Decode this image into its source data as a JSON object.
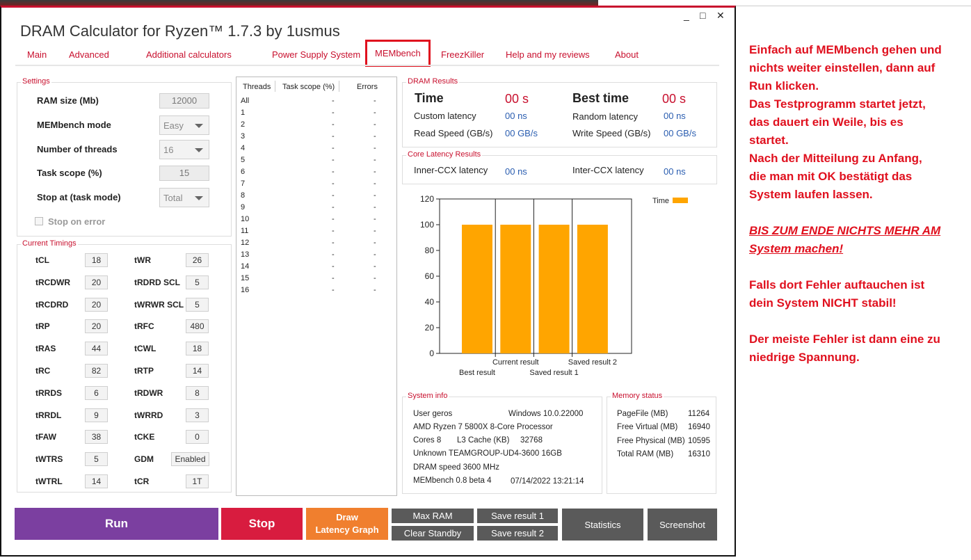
{
  "app_title": "DRAM Calculator for Ryzen™ 1.7.3 by 1usmus",
  "window_controls": [
    "_",
    "□",
    "✕"
  ],
  "tabs": [
    "Main",
    "Advanced",
    "Additional calculators",
    "Power Supply System",
    "MEMbench",
    "FreezKiller",
    "Help and my reviews",
    "About"
  ],
  "settings": {
    "title": "Settings",
    "ram_size_label": "RAM size (Mb)",
    "ram_size_value": "12000",
    "mode_label": "MEMbench mode",
    "mode_value": "Easy",
    "threads_label": "Number of threads",
    "threads_value": "16",
    "scope_label": "Task scope (%)",
    "scope_value": "15",
    "stop_label": "Stop at (task mode)",
    "stop_value": "Total",
    "stop_on_error": "Stop on error"
  },
  "timings": {
    "title": "Current Timings",
    "rows": [
      {
        "l1": "tCL",
        "v1": "18",
        "l2": "tWR",
        "v2": "26"
      },
      {
        "l1": "tRCDWR",
        "v1": "20",
        "l2": "tRDRD SCL",
        "v2": "5"
      },
      {
        "l1": "tRCDRD",
        "v1": "20",
        "l2": "tWRWR SCL",
        "v2": "5"
      },
      {
        "l1": "tRP",
        "v1": "20",
        "l2": "tRFC",
        "v2": "480"
      },
      {
        "l1": "tRAS",
        "v1": "44",
        "l2": "tCWL",
        "v2": "18"
      },
      {
        "l1": "tRC",
        "v1": "82",
        "l2": "tRTP",
        "v2": "14"
      },
      {
        "l1": "tRRDS",
        "v1": "6",
        "l2": "tRDWR",
        "v2": "8"
      },
      {
        "l1": "tRRDL",
        "v1": "9",
        "l2": "tWRRD",
        "v2": "3"
      },
      {
        "l1": "tFAW",
        "v1": "38",
        "l2": "tCKE",
        "v2": "0"
      },
      {
        "l1": "tWTRS",
        "v1": "5",
        "l2": "GDM",
        "v2": "Enabled"
      },
      {
        "l1": "tWTRL",
        "v1": "14",
        "l2": "tCR",
        "v2": "1T"
      }
    ]
  },
  "threads_table": {
    "headers": [
      "Threads",
      "Task scope (%)",
      "Errors"
    ],
    "rows": [
      "All",
      "1",
      "2",
      "3",
      "4",
      "5",
      "6",
      "7",
      "8",
      "9",
      "10",
      "11",
      "12",
      "13",
      "14",
      "15",
      "16"
    ],
    "dash": "-"
  },
  "dram_results": {
    "title": "DRAM Results",
    "time_label": "Time",
    "time_value": "00 s",
    "best_label": "Best time",
    "best_value": "00 s",
    "custom_label": "Custom latency",
    "custom_value": "00 ns",
    "random_label": "Random latency",
    "random_value": "00 ns",
    "read_label": "Read Speed (GB/s)",
    "read_value": "00 GB/s",
    "write_label": "Write Speed (GB/s)",
    "write_value": "00 GB/s"
  },
  "core_latency": {
    "title": "Core Latency Results",
    "inner_label": "Inner-CCX latency",
    "inner_value": "00 ns",
    "inter_label": "Inter-CCX latency",
    "inter_value": "00 ns"
  },
  "chart_data": {
    "type": "bar",
    "categories": [
      "Best result",
      "Current result",
      "Saved result 1",
      "Saved result 2"
    ],
    "series": [
      {
        "name": "Time",
        "values": [
          100,
          100,
          100,
          100
        ],
        "color": "#ffa500"
      }
    ],
    "ylim": [
      0,
      120
    ],
    "yticks": [
      0,
      20,
      40,
      60,
      80,
      100,
      120
    ],
    "grid": false,
    "legend": "top-right"
  },
  "system_info": {
    "title": "System info",
    "user": "User geros",
    "os": "Windows 10.0.22000",
    "cpu": "AMD Ryzen 7 5800X 8-Core Processor",
    "cores": "Cores 8",
    "l3_label": "L3 Cache (KB)",
    "l3_value": "32768",
    "mem": "Unknown TEAMGROUP-UD4-3600  16GB",
    "speed": "DRAM speed 3600 MHz",
    "version": "MEMbench 0.8 beta 4",
    "datetime": "07/14/2022 13:21:14"
  },
  "memory_status": {
    "title": "Memory status",
    "rows": [
      {
        "label": "PageFile (MB)",
        "value": "11264"
      },
      {
        "label": "Free Virtual (MB)",
        "value": "16940"
      },
      {
        "label": "Free Physical (MB)",
        "value": "10595"
      },
      {
        "label": "Total RAM (MB)",
        "value": "16310"
      }
    ]
  },
  "buttons": {
    "run": "Run",
    "stop": "Stop",
    "draw1": "Draw",
    "draw2": "Latency Graph",
    "max_ram": "Max RAM",
    "clear_standby": "Clear Standby",
    "save1": "Save result 1",
    "save2": "Save result 2",
    "statistics": "Statistics",
    "screenshot": "Screenshot"
  },
  "colors": {
    "accent": "#c8102e",
    "run": "#7b3fa0",
    "stop": "#d81c3f",
    "draw": "#f07f2e",
    "grey_btn": "#5a5a5a",
    "bar": "#ffa500"
  },
  "annotation": {
    "lines": [
      "Einfach auf MEMbench gehen und",
      "nichts weiter einstellen, dann auf",
      "Run klicken.",
      "Das Testprogramm startet jetzt,",
      "das dauert ein Weile, bis es",
      "startet.",
      "Nach der Mitteilung zu Anfang,",
      "die man mit OK bestätigt das",
      "System laufen lassen."
    ],
    "warning_lines": [
      "BIS ZUM ENDE NICHTS MEHR AM",
      "System machen!"
    ],
    "error_lines": [
      "Falls dort Fehler auftauchen ist",
      "dein System NICHT stabil!"
    ],
    "voltage_lines": [
      "Der meiste Fehler ist dann eine zu",
      "niedrige Spannung."
    ]
  }
}
